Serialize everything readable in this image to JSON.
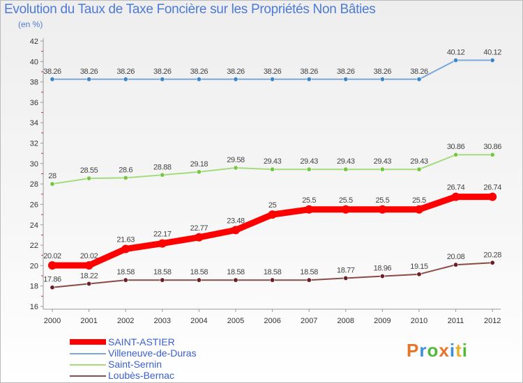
{
  "header": {
    "title": "Evolution du Taux de Taxe Foncière sur les Propriétés Non Bâties",
    "unit": "(en %)"
  },
  "logo": {
    "letters": [
      "P",
      "r",
      "o",
      "x",
      "i",
      "t",
      "i"
    ],
    "colors": [
      "#e8732a",
      "#3c8fd8",
      "#52b83a",
      "#e8732a",
      "#3c8fd8",
      "#e8b02a",
      "#52b83a"
    ]
  },
  "chart_data": {
    "type": "line",
    "title": "Evolution du Taux de Taxe Foncière sur les Propriétés Non Bâties",
    "ylabel": "(en %)",
    "xlabel": "",
    "ylim": [
      16,
      42
    ],
    "yticks": [
      16,
      18,
      20,
      22,
      24,
      26,
      28,
      30,
      32,
      34,
      36,
      38,
      40,
      42
    ],
    "categories": [
      "2000",
      "2001",
      "2002",
      "2003",
      "2004",
      "2005",
      "2006",
      "2007",
      "2008",
      "2009",
      "2010",
      "2011",
      "2012"
    ],
    "series": [
      {
        "name": "SAINT-ASTIER",
        "color": "#ff0000",
        "thick": true,
        "values": [
          20.02,
          20.02,
          21.63,
          22.17,
          22.77,
          23.48,
          25,
          25.5,
          25.5,
          25.5,
          25.5,
          26.74,
          26.74
        ],
        "labels": [
          "20.02",
          "20.02",
          "21.63",
          "22.17",
          "22.77",
          "23.48",
          "25",
          "25.5",
          "25.5",
          "25.5",
          "25.5",
          "26.74",
          "26.74"
        ]
      },
      {
        "name": "Villeneuve-de-Duras",
        "color": "#7aa8d8",
        "dot": "#3f86c9",
        "thick": false,
        "values": [
          38.26,
          38.26,
          38.26,
          38.26,
          38.26,
          38.26,
          38.26,
          38.26,
          38.26,
          38.26,
          38.26,
          40.12,
          40.12
        ],
        "labels": [
          "38.26",
          "38.26",
          "38.26",
          "38.26",
          "38.26",
          "38.26",
          "38.26",
          "38.26",
          "38.26",
          "38.26",
          "38.26",
          "40.12",
          "40.12"
        ]
      },
      {
        "name": "Saint-Sernin",
        "color": "#a4dc7c",
        "dot": "#77c546",
        "thick": false,
        "values": [
          28,
          28.55,
          28.6,
          28.88,
          29.18,
          29.58,
          29.43,
          29.43,
          29.43,
          29.43,
          29.43,
          30.86,
          30.86
        ],
        "labels": [
          "28",
          "28.55",
          "28.6",
          "28.88",
          "29.18",
          "29.58",
          "29.43",
          "29.43",
          "29.43",
          "29.43",
          "29.43",
          "30.86",
          "30.86"
        ]
      },
      {
        "name": "Loubès-Bernac",
        "color": "#8a4a4a",
        "dot": "#6b1f23",
        "thick": false,
        "values": [
          17.86,
          18.22,
          18.58,
          18.58,
          18.58,
          18.58,
          18.58,
          18.58,
          18.77,
          18.96,
          19.15,
          20.08,
          20.28
        ],
        "labels": [
          "17.86",
          "18.22",
          "18.58",
          "18.58",
          "18.58",
          "18.58",
          "18.58",
          "18.58",
          "18.77",
          "18.96",
          "19.15",
          "20.08",
          "20.28"
        ]
      }
    ],
    "grid": false,
    "legend": "bottom-left"
  }
}
